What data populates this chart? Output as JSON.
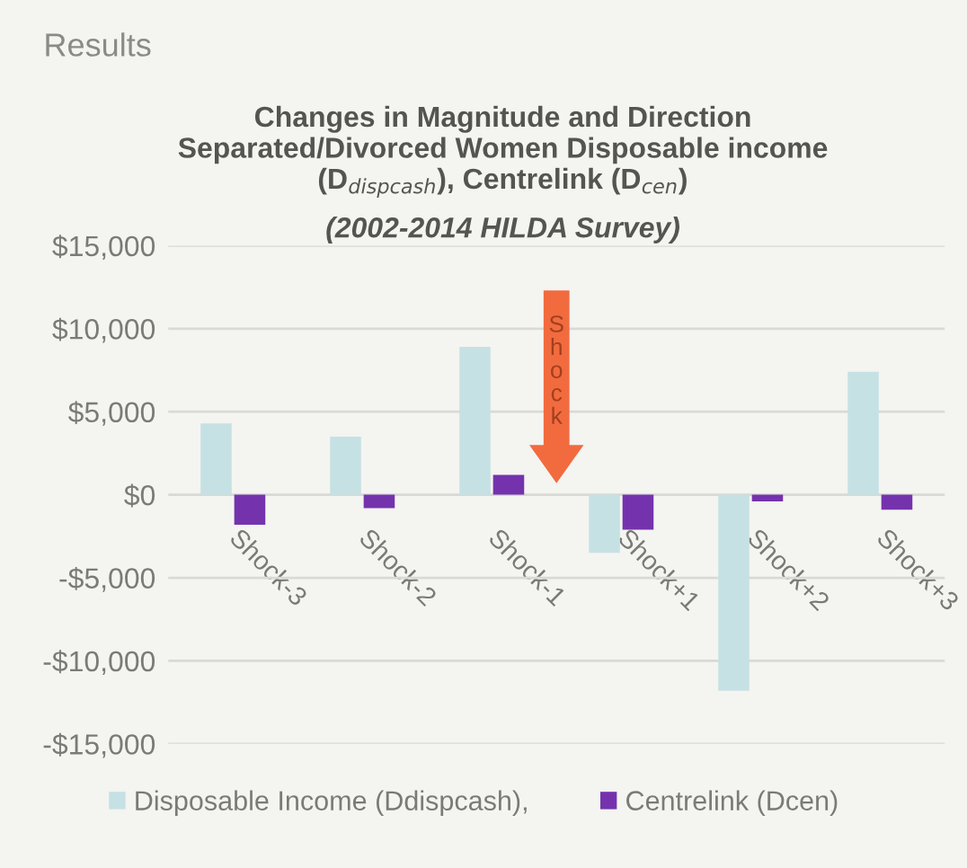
{
  "chart_data": {
    "type": "bar",
    "title": "Changes in Magnitude and Direction\nSeparated/Divorced Women Disposable income\n(D$_{dispcash}$), Centrelink (D$_{cen}$)",
    "subtitle": "(2002-2014 HILDA Survey)",
    "annotations": [
      "Results",
      "Shock"
    ],
    "categories": [
      "Shock-3",
      "Shock-2",
      "Shock-1",
      "Shock+1",
      "Shock+2",
      "Shock+3"
    ],
    "series": [
      {
        "name": "Disposable Income (Ddispcash),",
        "color": "#c6e1e4",
        "values": [
          4300,
          3500,
          8900,
          -3500,
          -11800,
          7400
        ]
      },
      {
        "name": "Centrelink (Dcen)",
        "color": "#7433ad",
        "values": [
          -1800,
          -800,
          1200,
          -2100,
          -400,
          -900
        ]
      }
    ],
    "ylim": [
      -15000,
      15000
    ],
    "yticks": [
      {
        "value": -15000,
        "label": "-$15,000"
      },
      {
        "value": -10000,
        "label": "-$10,000"
      },
      {
        "value": -5000,
        "label": "-$5,000"
      },
      {
        "value": 0,
        "label": "$0"
      },
      {
        "value": 5000,
        "label": "$5,000"
      },
      {
        "value": 10000,
        "label": "$10,000"
      },
      {
        "value": 15000,
        "label": "$15,000"
      }
    ],
    "grid": "y",
    "legend": "bottom"
  }
}
